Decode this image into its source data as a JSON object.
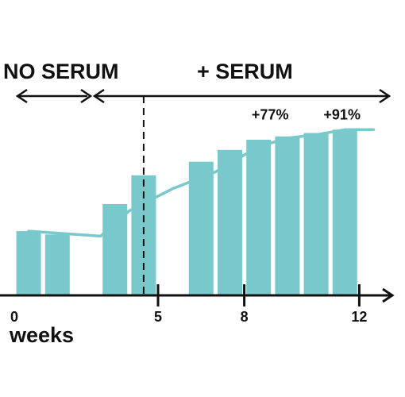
{
  "colors": {
    "bar": "#79c8cc",
    "line": "#79c8cc",
    "axis": "#111111",
    "text": "#111111",
    "background": "#ffffff"
  },
  "chart_data": {
    "type": "bar",
    "title": "",
    "phases": {
      "before": "NO SERUM",
      "after": "+ SERUM"
    },
    "x_unit": "weeks",
    "xlim": [
      0,
      13
    ],
    "ylim": [
      0,
      100
    ],
    "x_ticks": [
      {
        "x": 0,
        "label": "0",
        "tick_mark": false
      },
      {
        "x": 5,
        "label": "5",
        "tick_mark": true
      },
      {
        "x": 8,
        "label": "8",
        "tick_mark": true
      },
      {
        "x": 12,
        "label": "12",
        "tick_mark": true
      }
    ],
    "serum_start_week": 4.5,
    "x": [
      0.5,
      1.5,
      3.5,
      4.5,
      6.5,
      7.5,
      8.5,
      9.5,
      10.5,
      11.5
    ],
    "values": [
      38,
      36,
      54,
      71,
      79,
      86,
      92,
      94,
      96,
      98
    ],
    "trend_line": {
      "x": [
        0.5,
        3.0,
        4.0,
        5.5,
        7.0,
        8.5,
        9.5,
        10.5,
        11.5,
        12.5
      ],
      "y": [
        38,
        35,
        50,
        63,
        73,
        88,
        93,
        95,
        98,
        98
      ]
    },
    "annotations": [
      {
        "text": "+77%",
        "x": 8.9,
        "y": 104
      },
      {
        "text": "+91%",
        "x": 11.4,
        "y": 104
      }
    ]
  }
}
